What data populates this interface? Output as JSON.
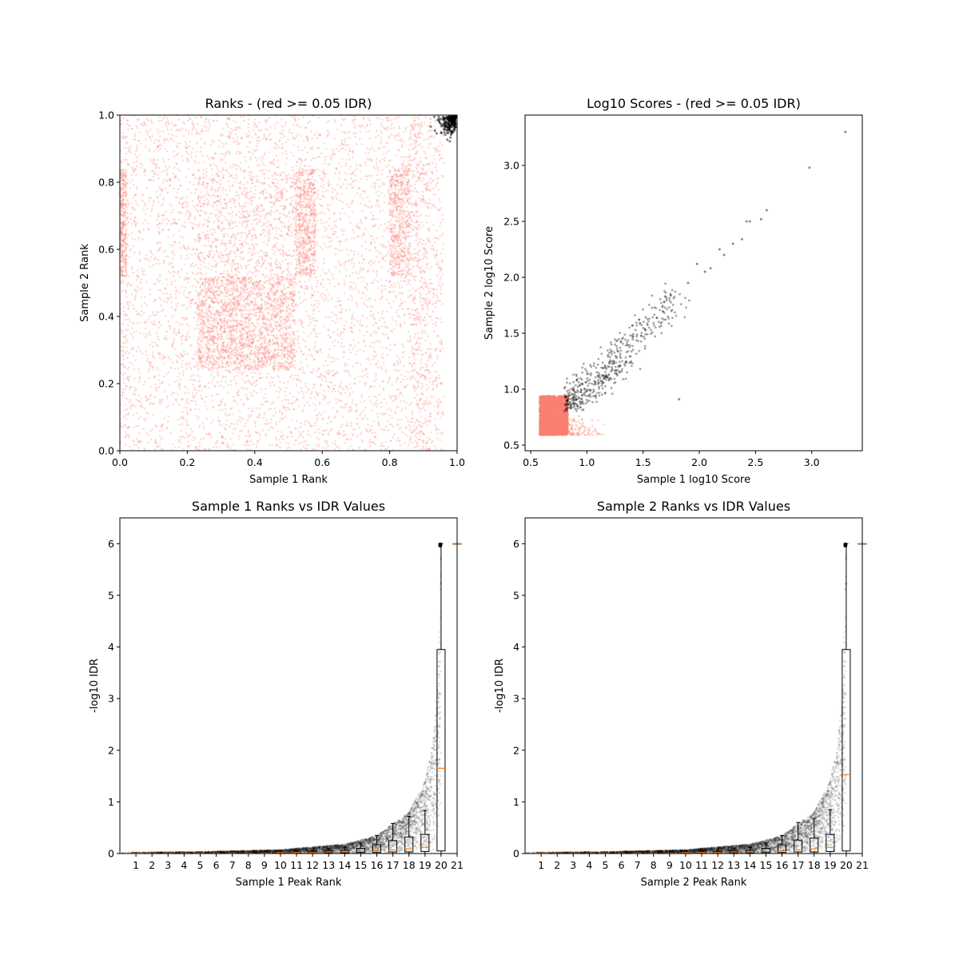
{
  "figure": {
    "background": "#ffffff"
  },
  "colors": {
    "pass": "#000000",
    "fail": "#FA8072",
    "median": "#FF7F0E",
    "box": "#000000"
  },
  "chart_data": [
    {
      "type": "scatter",
      "title": "Ranks - (red >= 0.05 IDR)",
      "xlabel": "Sample 1 Rank",
      "ylabel": "Sample 2 Rank",
      "xlim": [
        0.0,
        1.0
      ],
      "ylim": [
        0.0,
        1.0
      ],
      "xticks": [
        "0.0",
        "0.2",
        "0.4",
        "0.6",
        "0.8",
        "1.0"
      ],
      "yticks": [
        "0.0",
        "0.2",
        "0.4",
        "0.6",
        "0.8",
        "1.0"
      ],
      "grid": false,
      "series": [
        {
          "color": "#FA8072",
          "description": "dense cloud filling whole square, blocks denser at [0.23-0.52]x[0.24-0.52], [0.52-0.58]x[0.52-0.84], [0.8-0.86]x[0.52-0.84]",
          "sample_points": [
            [
              0.05,
              0.1
            ],
            [
              0.12,
              0.62
            ],
            [
              0.35,
              0.35
            ],
            [
              0.42,
              0.45
            ],
            [
              0.55,
              0.6
            ],
            [
              0.6,
              0.75
            ],
            [
              0.83,
              0.65
            ],
            [
              0.9,
              0.3
            ],
            [
              0.7,
              0.1
            ],
            [
              0.2,
              0.9
            ]
          ]
        },
        {
          "color": "#000000",
          "description": "top-ranked peaks in both samples",
          "sample_points": [
            [
              0.96,
              0.97
            ],
            [
              0.98,
              0.99
            ],
            [
              0.99,
              0.98
            ],
            [
              0.97,
              0.95
            ],
            [
              0.995,
              0.995
            ]
          ]
        }
      ]
    },
    {
      "type": "scatter",
      "title": "Log10 Scores - (red >= 0.05 IDR)",
      "xlabel": "Sample 1 log10 Score",
      "ylabel": "Sample 2 log10 Score",
      "xlim": [
        0.45,
        3.45
      ],
      "ylim": [
        0.45,
        3.45
      ],
      "xticks": [
        "0.5",
        "1.0",
        "1.5",
        "2.0",
        "2.5",
        "3.0"
      ],
      "yticks": [
        "0.5",
        "1.0",
        "1.5",
        "2.0",
        "2.5",
        "3.0"
      ],
      "grid": false,
      "series": [
        {
          "color": "#FA8072",
          "description": "dense block near the minimum score",
          "sample_points": [
            [
              0.6,
              0.6
            ],
            [
              0.7,
              0.75
            ],
            [
              0.8,
              0.65
            ],
            [
              0.65,
              0.85
            ],
            [
              0.9,
              0.62
            ],
            [
              1.0,
              0.7
            ],
            [
              1.2,
              0.75
            ],
            [
              0.58,
              0.95
            ]
          ]
        },
        {
          "color": "#000000",
          "description": "correlated high-score peaks",
          "sample_points": [
            [
              0.9,
              0.85
            ],
            [
              1.0,
              1.0
            ],
            [
              1.2,
              1.1
            ],
            [
              1.5,
              1.5
            ],
            [
              1.8,
              1.9
            ],
            [
              2.2,
              2.2
            ],
            [
              2.4,
              2.5
            ],
            [
              2.6,
              2.6
            ],
            [
              2.98,
              2.98
            ],
            [
              3.3,
              3.3
            ],
            [
              1.82,
              0.91
            ]
          ]
        }
      ]
    },
    {
      "type": "scatter",
      "title": "Sample 1 Ranks vs IDR Values",
      "xlabel": "Sample 1 Peak Rank",
      "ylabel": "-log10 IDR",
      "xlim": [
        0,
        21
      ],
      "ylim": [
        0,
        6.5
      ],
      "xticks": [
        "1",
        "2",
        "3",
        "4",
        "5",
        "6",
        "7",
        "8",
        "9",
        "10",
        "11",
        "12",
        "13",
        "14",
        "15",
        "16",
        "17",
        "18",
        "19",
        "20",
        "21"
      ],
      "yticks": [
        "0",
        "1",
        "2",
        "3",
        "4",
        "5",
        "6"
      ],
      "grid": false,
      "scatter_curve": [
        [
          0,
          0.02
        ],
        [
          5,
          0.03
        ],
        [
          10,
          0.07
        ],
        [
          14,
          0.18
        ],
        [
          16,
          0.35
        ],
        [
          18,
          0.8
        ],
        [
          19,
          1.4
        ],
        [
          19.5,
          2.2
        ],
        [
          19.8,
          3.3
        ],
        [
          20,
          6.0
        ]
      ],
      "boxes": [
        {
          "bin": 1,
          "median": 0.01,
          "q1": 0.005,
          "q3": 0.015,
          "whislo": 0.0,
          "whishi": 0.02
        },
        {
          "bin": 2,
          "median": 0.01,
          "q1": 0.005,
          "q3": 0.015,
          "whislo": 0.0,
          "whishi": 0.02
        },
        {
          "bin": 3,
          "median": 0.01,
          "q1": 0.005,
          "q3": 0.015,
          "whislo": 0.0,
          "whishi": 0.02
        },
        {
          "bin": 4,
          "median": 0.01,
          "q1": 0.005,
          "q3": 0.015,
          "whislo": 0.0,
          "whishi": 0.02
        },
        {
          "bin": 5,
          "median": 0.01,
          "q1": 0.005,
          "q3": 0.015,
          "whislo": 0.0,
          "whishi": 0.02
        },
        {
          "bin": 6,
          "median": 0.01,
          "q1": 0.005,
          "q3": 0.015,
          "whislo": 0.0,
          "whishi": 0.02
        },
        {
          "bin": 7,
          "median": 0.01,
          "q1": 0.005,
          "q3": 0.015,
          "whislo": 0.0,
          "whishi": 0.02
        },
        {
          "bin": 8,
          "median": 0.01,
          "q1": 0.005,
          "q3": 0.015,
          "whislo": 0.0,
          "whishi": 0.02
        },
        {
          "bin": 9,
          "median": 0.01,
          "q1": 0.005,
          "q3": 0.02,
          "whislo": 0.0,
          "whishi": 0.03
        },
        {
          "bin": 10,
          "median": 0.02,
          "q1": 0.01,
          "q3": 0.025,
          "whislo": 0.0,
          "whishi": 0.04
        },
        {
          "bin": 11,
          "median": 0.02,
          "q1": 0.01,
          "q3": 0.03,
          "whislo": 0.0,
          "whishi": 0.05
        },
        {
          "bin": 12,
          "median": 0.02,
          "q1": 0.01,
          "q3": 0.035,
          "whislo": 0.0,
          "whishi": 0.06
        },
        {
          "bin": 13,
          "median": 0.03,
          "q1": 0.015,
          "q3": 0.05,
          "whislo": 0.0,
          "whishi": 0.09
        },
        {
          "bin": 14,
          "median": 0.03,
          "q1": 0.015,
          "q3": 0.06,
          "whislo": 0.0,
          "whishi": 0.12
        },
        {
          "bin": 15,
          "median": 0.04,
          "q1": 0.02,
          "q3": 0.1,
          "whislo": 0.0,
          "whishi": 0.2
        },
        {
          "bin": 16,
          "median": 0.05,
          "q1": 0.02,
          "q3": 0.17,
          "whislo": 0.0,
          "whishi": 0.35
        },
        {
          "bin": 17,
          "median": 0.07,
          "q1": 0.03,
          "q3": 0.25,
          "whislo": 0.0,
          "whishi": 0.58
        },
        {
          "bin": 18,
          "median": 0.09,
          "q1": 0.03,
          "q3": 0.32,
          "whislo": 0.0,
          "whishi": 0.72
        },
        {
          "bin": 19,
          "median": 0.12,
          "q1": 0.04,
          "q3": 0.37,
          "whislo": 0.0,
          "whishi": 0.83
        },
        {
          "bin": 20,
          "median": 1.65,
          "q1": 0.05,
          "q3": 3.95,
          "whislo": 0.0,
          "whishi": 6.0
        },
        {
          "bin": 21,
          "median": 6.0,
          "q1": 6.0,
          "q3": 6.0,
          "whislo": 6.0,
          "whishi": 6.0
        }
      ]
    },
    {
      "type": "scatter",
      "title": "Sample 2 Ranks vs IDR Values",
      "xlabel": "Sample 2 Peak Rank",
      "ylabel": "-log10 IDR",
      "xlim": [
        0,
        21
      ],
      "ylim": [
        0,
        6.5
      ],
      "xticks": [
        "1",
        "2",
        "3",
        "4",
        "5",
        "6",
        "7",
        "8",
        "9",
        "10",
        "11",
        "12",
        "13",
        "14",
        "15",
        "16",
        "17",
        "18",
        "19",
        "20",
        "21"
      ],
      "yticks": [
        "0",
        "1",
        "2",
        "3",
        "4",
        "5",
        "6"
      ],
      "grid": false,
      "scatter_curve": [
        [
          0,
          0.02
        ],
        [
          5,
          0.03
        ],
        [
          10,
          0.07
        ],
        [
          14,
          0.18
        ],
        [
          16,
          0.35
        ],
        [
          18,
          0.8
        ],
        [
          19,
          1.4
        ],
        [
          19.5,
          2.2
        ],
        [
          19.8,
          3.3
        ],
        [
          20,
          6.0
        ]
      ],
      "boxes": [
        {
          "bin": 1,
          "median": 0.01,
          "q1": 0.005,
          "q3": 0.015,
          "whislo": 0.0,
          "whishi": 0.02
        },
        {
          "bin": 2,
          "median": 0.01,
          "q1": 0.005,
          "q3": 0.015,
          "whislo": 0.0,
          "whishi": 0.02
        },
        {
          "bin": 3,
          "median": 0.01,
          "q1": 0.005,
          "q3": 0.015,
          "whislo": 0.0,
          "whishi": 0.02
        },
        {
          "bin": 4,
          "median": 0.01,
          "q1": 0.005,
          "q3": 0.015,
          "whislo": 0.0,
          "whishi": 0.02
        },
        {
          "bin": 5,
          "median": 0.01,
          "q1": 0.005,
          "q3": 0.015,
          "whislo": 0.0,
          "whishi": 0.02
        },
        {
          "bin": 6,
          "median": 0.01,
          "q1": 0.005,
          "q3": 0.015,
          "whislo": 0.0,
          "whishi": 0.02
        },
        {
          "bin": 7,
          "median": 0.01,
          "q1": 0.005,
          "q3": 0.015,
          "whislo": 0.0,
          "whishi": 0.02
        },
        {
          "bin": 8,
          "median": 0.01,
          "q1": 0.005,
          "q3": 0.015,
          "whislo": 0.0,
          "whishi": 0.02
        },
        {
          "bin": 9,
          "median": 0.01,
          "q1": 0.005,
          "q3": 0.02,
          "whislo": 0.0,
          "whishi": 0.03
        },
        {
          "bin": 10,
          "median": 0.02,
          "q1": 0.01,
          "q3": 0.025,
          "whislo": 0.0,
          "whishi": 0.04
        },
        {
          "bin": 11,
          "median": 0.02,
          "q1": 0.01,
          "q3": 0.03,
          "whislo": 0.0,
          "whishi": 0.05
        },
        {
          "bin": 12,
          "median": 0.02,
          "q1": 0.01,
          "q3": 0.035,
          "whislo": 0.0,
          "whishi": 0.06
        },
        {
          "bin": 13,
          "median": 0.03,
          "q1": 0.015,
          "q3": 0.05,
          "whislo": 0.0,
          "whishi": 0.09
        },
        {
          "bin": 14,
          "median": 0.03,
          "q1": 0.015,
          "q3": 0.06,
          "whislo": 0.0,
          "whishi": 0.12
        },
        {
          "bin": 15,
          "median": 0.04,
          "q1": 0.02,
          "q3": 0.1,
          "whislo": 0.0,
          "whishi": 0.2
        },
        {
          "bin": 16,
          "median": 0.05,
          "q1": 0.02,
          "q3": 0.17,
          "whislo": 0.0,
          "whishi": 0.35
        },
        {
          "bin": 17,
          "median": 0.07,
          "q1": 0.03,
          "q3": 0.26,
          "whislo": 0.0,
          "whishi": 0.6
        },
        {
          "bin": 18,
          "median": 0.09,
          "q1": 0.03,
          "q3": 0.3,
          "whislo": 0.0,
          "whishi": 0.68
        },
        {
          "bin": 19,
          "median": 0.12,
          "q1": 0.04,
          "q3": 0.37,
          "whislo": 0.0,
          "whishi": 0.85
        },
        {
          "bin": 20,
          "median": 1.53,
          "q1": 0.05,
          "q3": 3.95,
          "whislo": 0.0,
          "whishi": 6.0
        },
        {
          "bin": 21,
          "median": 6.0,
          "q1": 6.0,
          "q3": 6.0,
          "whislo": 6.0,
          "whishi": 6.0
        }
      ]
    }
  ]
}
